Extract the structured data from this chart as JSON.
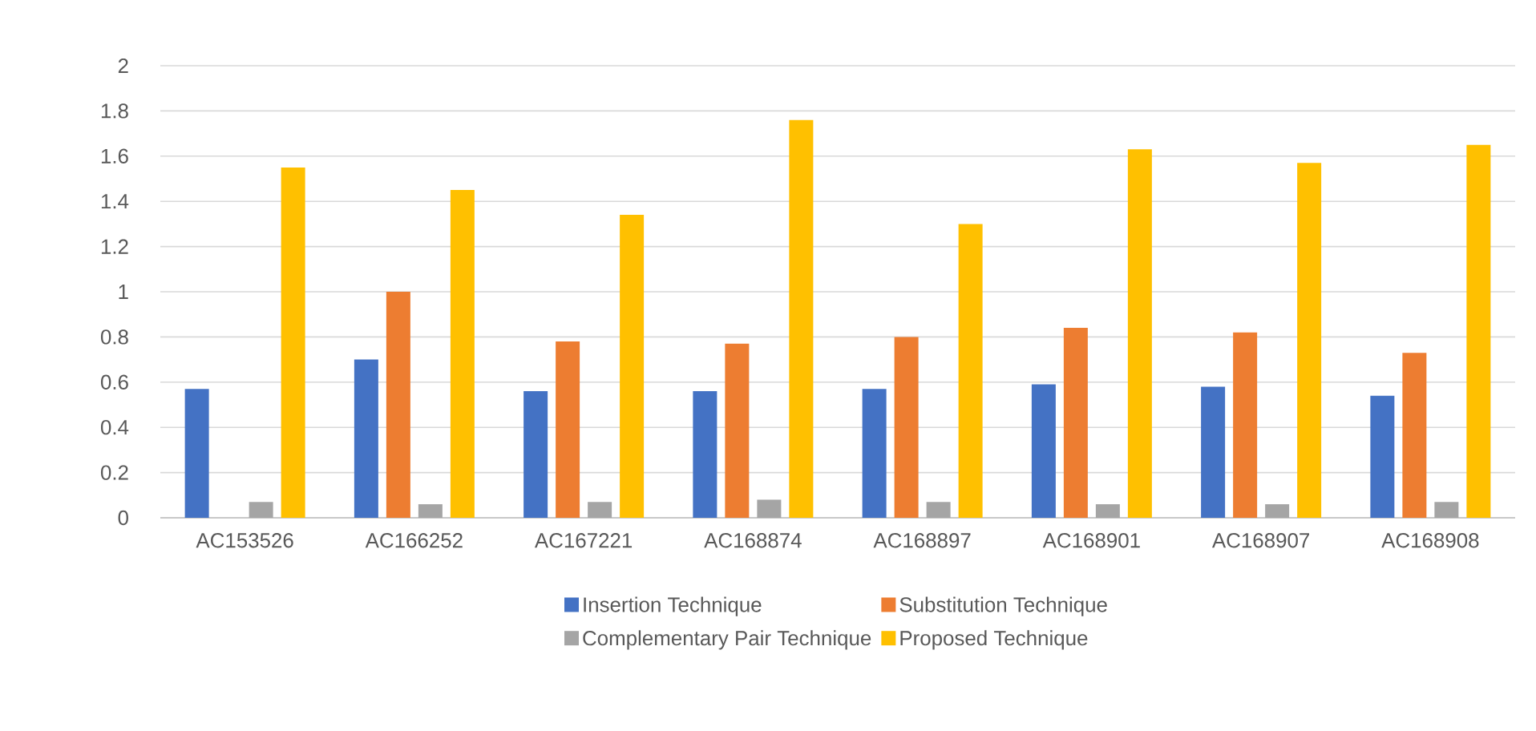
{
  "chart_data": {
    "type": "bar",
    "categories": [
      "AC153526",
      "AC166252",
      "AC167221",
      "AC168874",
      "AC168897",
      "AC168901",
      "AC168907",
      "AC168908"
    ],
    "series": [
      {
        "name": "Insertion Technique",
        "color": "#4472c4",
        "values": [
          0.57,
          0.7,
          0.56,
          0.56,
          0.57,
          0.59,
          0.58,
          0.54
        ]
      },
      {
        "name": "Substitution Technique",
        "color": "#ed7d31",
        "values": [
          null,
          1.0,
          0.78,
          0.77,
          0.8,
          0.84,
          0.82,
          0.73
        ]
      },
      {
        "name": "Complementary Pair Technique",
        "color": "#a5a5a5",
        "values": [
          0.07,
          0.06,
          0.07,
          0.08,
          0.07,
          0.06,
          0.06,
          0.07
        ]
      },
      {
        "name": "Proposed Technique",
        "color": "#ffc000",
        "values": [
          1.55,
          1.45,
          1.34,
          1.76,
          1.3,
          1.63,
          1.57,
          1.65
        ]
      }
    ],
    "ylim": [
      0,
      2
    ],
    "yticks": [
      0,
      0.2,
      0.4,
      0.6,
      0.8,
      1,
      1.2,
      1.4,
      1.6,
      1.8,
      2
    ],
    "grid": "y",
    "legend": "bottom"
  }
}
